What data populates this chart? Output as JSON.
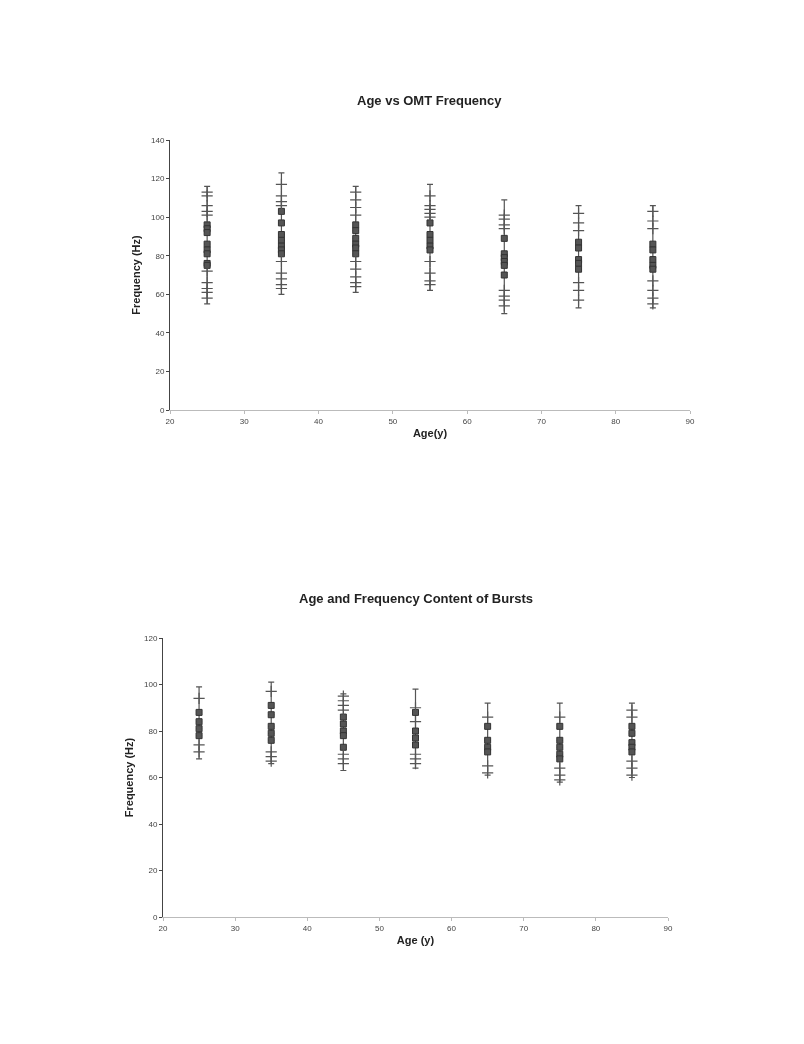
{
  "chart_data": [
    {
      "type": "scatter",
      "title": "Age vs OMT Frequency",
      "xlabel": "Age(y)",
      "ylabel": "Frequency (Hz)",
      "xlim": [
        20,
        90
      ],
      "xticks": [
        20,
        30,
        40,
        50,
        60,
        70,
        80,
        90
      ],
      "ylim": [
        0,
        140
      ],
      "yticks": [
        0,
        20,
        40,
        60,
        80,
        100,
        120,
        140
      ],
      "series": [
        {
          "marker": "square",
          "color": "#555555",
          "x": [
            25,
            25,
            25,
            25,
            25,
            25,
            25,
            25,
            35,
            35,
            35,
            35,
            35,
            35,
            35,
            45,
            45,
            45,
            45,
            45,
            45,
            55,
            55,
            55,
            55,
            55,
            65,
            65,
            65,
            65,
            65,
            65,
            75,
            75,
            75,
            75,
            75,
            85,
            85,
            85,
            85,
            85
          ],
          "values": [
            96,
            94,
            92,
            86,
            83,
            81,
            76,
            75,
            103,
            97,
            91,
            88,
            85,
            83,
            81,
            96,
            93,
            89,
            86,
            84,
            81,
            97,
            91,
            88,
            85,
            83,
            89,
            81,
            79,
            77,
            75,
            70,
            87,
            84,
            78,
            76,
            73,
            86,
            83,
            78,
            75,
            73
          ],
          "errors": [
            [
              55,
              116
            ],
            null,
            null,
            null,
            null,
            null,
            null,
            null,
            [
              60,
              123
            ],
            null,
            null,
            null,
            null,
            null,
            null,
            [
              61,
              116
            ],
            null,
            null,
            null,
            null,
            null,
            [
              62,
              117
            ],
            null,
            null,
            null,
            null,
            [
              50,
              109
            ],
            null,
            null,
            null,
            null,
            null,
            [
              53,
              106
            ],
            null,
            null,
            null,
            null,
            [
              53,
              106
            ],
            null,
            null,
            null,
            null
          ]
        },
        {
          "marker": "cross",
          "color": "#555555",
          "x": [
            25,
            25,
            25,
            25,
            25,
            25,
            25,
            25,
            25,
            25,
            35,
            35,
            35,
            35,
            35,
            35,
            35,
            35,
            35,
            45,
            45,
            45,
            45,
            45,
            45,
            45,
            45,
            45,
            55,
            55,
            55,
            55,
            55,
            55,
            55,
            55,
            55,
            65,
            65,
            65,
            65,
            65,
            65,
            65,
            65,
            75,
            75,
            75,
            75,
            75,
            75,
            85,
            85,
            85,
            85,
            85,
            85,
            85
          ],
          "values": [
            113,
            111,
            106,
            103,
            101,
            72,
            66,
            63,
            61,
            58,
            117,
            111,
            108,
            106,
            77,
            71,
            68,
            65,
            63,
            113,
            109,
            105,
            101,
            77,
            73,
            69,
            66,
            64,
            111,
            106,
            104,
            102,
            100,
            77,
            71,
            67,
            65,
            101,
            99,
            96,
            94,
            62,
            59,
            57,
            54,
            102,
            97,
            93,
            66,
            62,
            57,
            103,
            98,
            94,
            67,
            62,
            58,
            55
          ]
        }
      ]
    },
    {
      "type": "scatter",
      "title": "Age and Frequency Content of Bursts",
      "xlabel": "Age (y)",
      "ylabel": "Frequency (Hz)",
      "xlim": [
        20,
        90
      ],
      "xticks": [
        20,
        30,
        40,
        50,
        60,
        70,
        80,
        90
      ],
      "ylim": [
        0,
        120
      ],
      "yticks": [
        0,
        20,
        40,
        60,
        80,
        100,
        120
      ],
      "series": [
        {
          "marker": "square",
          "color": "#555555",
          "x": [
            25,
            25,
            25,
            25,
            35,
            35,
            35,
            35,
            35,
            45,
            45,
            45,
            45,
            45,
            55,
            55,
            55,
            55,
            65,
            65,
            65,
            65,
            75,
            75,
            75,
            75,
            75,
            85,
            85,
            85,
            85,
            85
          ],
          "values": [
            88,
            84,
            81,
            78,
            91,
            87,
            82,
            79,
            76,
            86,
            83,
            80,
            78,
            73,
            88,
            80,
            77,
            74,
            82,
            76,
            73,
            71,
            82,
            76,
            73,
            70,
            68,
            82,
            79,
            75,
            73,
            71
          ],
          "errors": [
            [
              68,
              99
            ],
            null,
            null,
            null,
            [
              66,
              101
            ],
            null,
            null,
            null,
            null,
            [
              63,
              96
            ],
            null,
            null,
            null,
            null,
            [
              64,
              98
            ],
            null,
            null,
            null,
            [
              61,
              92
            ],
            null,
            null,
            null,
            [
              58,
              92
            ],
            null,
            null,
            null,
            null,
            [
              60,
              92
            ],
            null,
            null,
            null,
            null
          ]
        },
        {
          "marker": "cross",
          "color": "#555555",
          "x": [
            25,
            25,
            25,
            35,
            35,
            35,
            35,
            45,
            45,
            45,
            45,
            45,
            45,
            45,
            55,
            55,
            55,
            55,
            55,
            65,
            65,
            65,
            75,
            75,
            75,
            75,
            85,
            85,
            85,
            85,
            85
          ],
          "values": [
            94,
            74,
            71,
            97,
            71,
            69,
            67,
            95,
            93,
            91,
            89,
            70,
            68,
            66,
            90,
            84,
            70,
            68,
            66,
            86,
            65,
            62,
            86,
            64,
            61,
            59,
            89,
            86,
            67,
            64,
            61
          ]
        }
      ]
    }
  ]
}
